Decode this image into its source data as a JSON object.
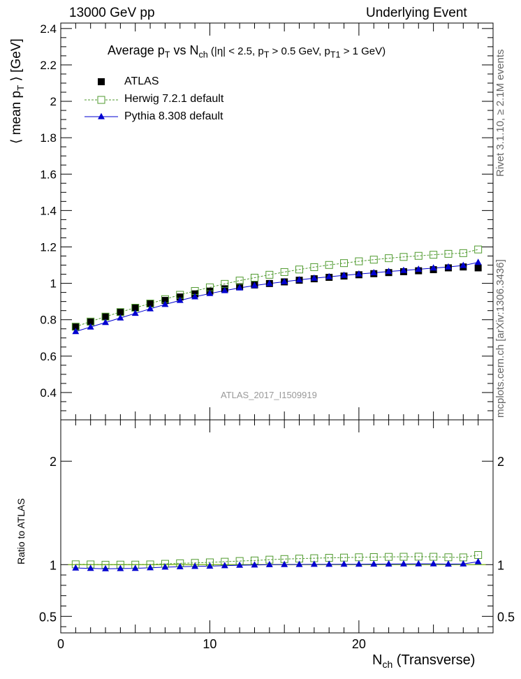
{
  "header": {
    "left": "13000 GeV pp",
    "right": "Underlying Event"
  },
  "side_notes": {
    "rivet": "Rivet 3.1.10, ≥ 2.1M events",
    "mcplots": "mcplots.cern.ch [arXiv:1306.3436]"
  },
  "watermark": "ATLAS_2017_I1509919",
  "chart_data": [
    {
      "type": "scatter",
      "title": "Average p_T vs N_ch (|η| < 2.5, p_T > 0.5 GeV, p_T1 > 1 GeV)",
      "title_parts": {
        "a": "Average p",
        "a_sub": "T",
        "b": " vs N",
        "b_sub": "ch",
        "c": " (|η| < 2.5, p",
        "c_sub": "T",
        "d": " > 0.5 GeV, p",
        "d_sub": "T1",
        "e": " > 1 GeV)"
      },
      "ylabel": "⟨ mean p_T ⟩ [GeV]",
      "ylabel_parts": {
        "a": "⟨ mean p",
        "sub": "T",
        "b": " ⟩ [GeV]"
      },
      "xlabel": "",
      "xlim": [
        0,
        29
      ],
      "ylim": [
        0.25,
        2.43
      ],
      "y_ticks": [
        0.4,
        0.6,
        0.8,
        1,
        1.2,
        1.4,
        1.6,
        1.8,
        2,
        2.2,
        2.4
      ],
      "y_tick_labels": [
        "0.4",
        "0.6",
        "0.8",
        "1",
        "1.2",
        "1.4",
        "1.6",
        "1.8",
        "2",
        "2.2",
        "2.4"
      ],
      "legend_position": "top-left",
      "x": [
        1,
        2,
        3,
        4,
        5,
        6,
        7,
        8,
        9,
        10,
        11,
        12,
        13,
        14,
        15,
        16,
        17,
        18,
        19,
        20,
        21,
        22,
        23,
        24,
        25,
        26,
        27,
        28
      ],
      "series": [
        {
          "name": "ATLAS",
          "color": "#000000",
          "marker": "filled-square",
          "values": [
            0.76,
            0.788,
            0.818,
            0.842,
            0.866,
            0.887,
            0.906,
            0.925,
            0.942,
            0.957,
            0.97,
            0.981,
            0.991,
            0.999,
            1.008,
            1.017,
            1.025,
            1.033,
            1.04,
            1.047,
            1.053,
            1.059,
            1.064,
            1.069,
            1.075,
            1.085,
            1.09,
            1.085
          ]
        },
        {
          "name": "Herwig 7.2.1 default",
          "color": "#4f9a2e",
          "marker": "open-square",
          "line": "dotted",
          "values": [
            0.762,
            0.79,
            0.817,
            0.842,
            0.866,
            0.889,
            0.913,
            0.937,
            0.958,
            0.978,
            0.997,
            1.015,
            1.031,
            1.047,
            1.062,
            1.076,
            1.089,
            1.101,
            1.111,
            1.121,
            1.13,
            1.138,
            1.145,
            1.151,
            1.157,
            1.162,
            1.166,
            1.186
          ]
        },
        {
          "name": "Pythia 8.308 default",
          "color": "#0000d0",
          "marker": "filled-triangle",
          "line": "solid",
          "values": [
            0.735,
            0.76,
            0.785,
            0.81,
            0.835,
            0.86,
            0.884,
            0.906,
            0.926,
            0.944,
            0.96,
            0.975,
            0.988,
            0.999,
            1.009,
            1.019,
            1.028,
            1.036,
            1.044,
            1.051,
            1.058,
            1.065,
            1.071,
            1.077,
            1.084,
            1.09,
            1.098,
            1.115
          ]
        }
      ]
    },
    {
      "type": "scatter",
      "title": "",
      "ylabel": "Ratio to ATLAS",
      "xlabel": "N_ch (Transverse)",
      "xlabel_parts": {
        "a": "N",
        "sub": "ch",
        "b": " (Transverse)"
      },
      "xlim": [
        0,
        29
      ],
      "ylim": [
        0.34,
        2.4
      ],
      "x_ticks": [
        0,
        10,
        20
      ],
      "x_tick_labels": [
        "0",
        "10",
        "20"
      ],
      "y_ticks": [
        0.5,
        1,
        2
      ],
      "y_tick_labels": [
        "0.5",
        "1",
        "2"
      ],
      "band_color": "#ffff66",
      "reference_line_color": "#4f9a2e",
      "x": [
        1,
        2,
        3,
        4,
        5,
        6,
        7,
        8,
        9,
        10,
        11,
        12,
        13,
        14,
        15,
        16,
        17,
        18,
        19,
        20,
        21,
        22,
        23,
        24,
        25,
        26,
        27,
        28
      ],
      "series": [
        {
          "name": "Herwig 7.2.1 default",
          "values": [
            1.003,
            1.002,
            0.999,
            1.0,
            1.0,
            1.002,
            1.008,
            1.013,
            1.017,
            1.022,
            1.028,
            1.035,
            1.04,
            1.048,
            1.054,
            1.058,
            1.062,
            1.066,
            1.068,
            1.071,
            1.073,
            1.075,
            1.076,
            1.077,
            1.076,
            1.071,
            1.07,
            1.093
          ]
        },
        {
          "name": "Pythia 8.308 default",
          "values": [
            0.967,
            0.964,
            0.96,
            0.962,
            0.964,
            0.97,
            0.976,
            0.98,
            0.983,
            0.986,
            0.99,
            0.994,
            0.997,
            1.0,
            1.001,
            1.002,
            1.003,
            1.003,
            1.004,
            1.004,
            1.005,
            1.006,
            1.007,
            1.008,
            1.008,
            1.005,
            1.007,
            1.028
          ]
        }
      ]
    }
  ]
}
